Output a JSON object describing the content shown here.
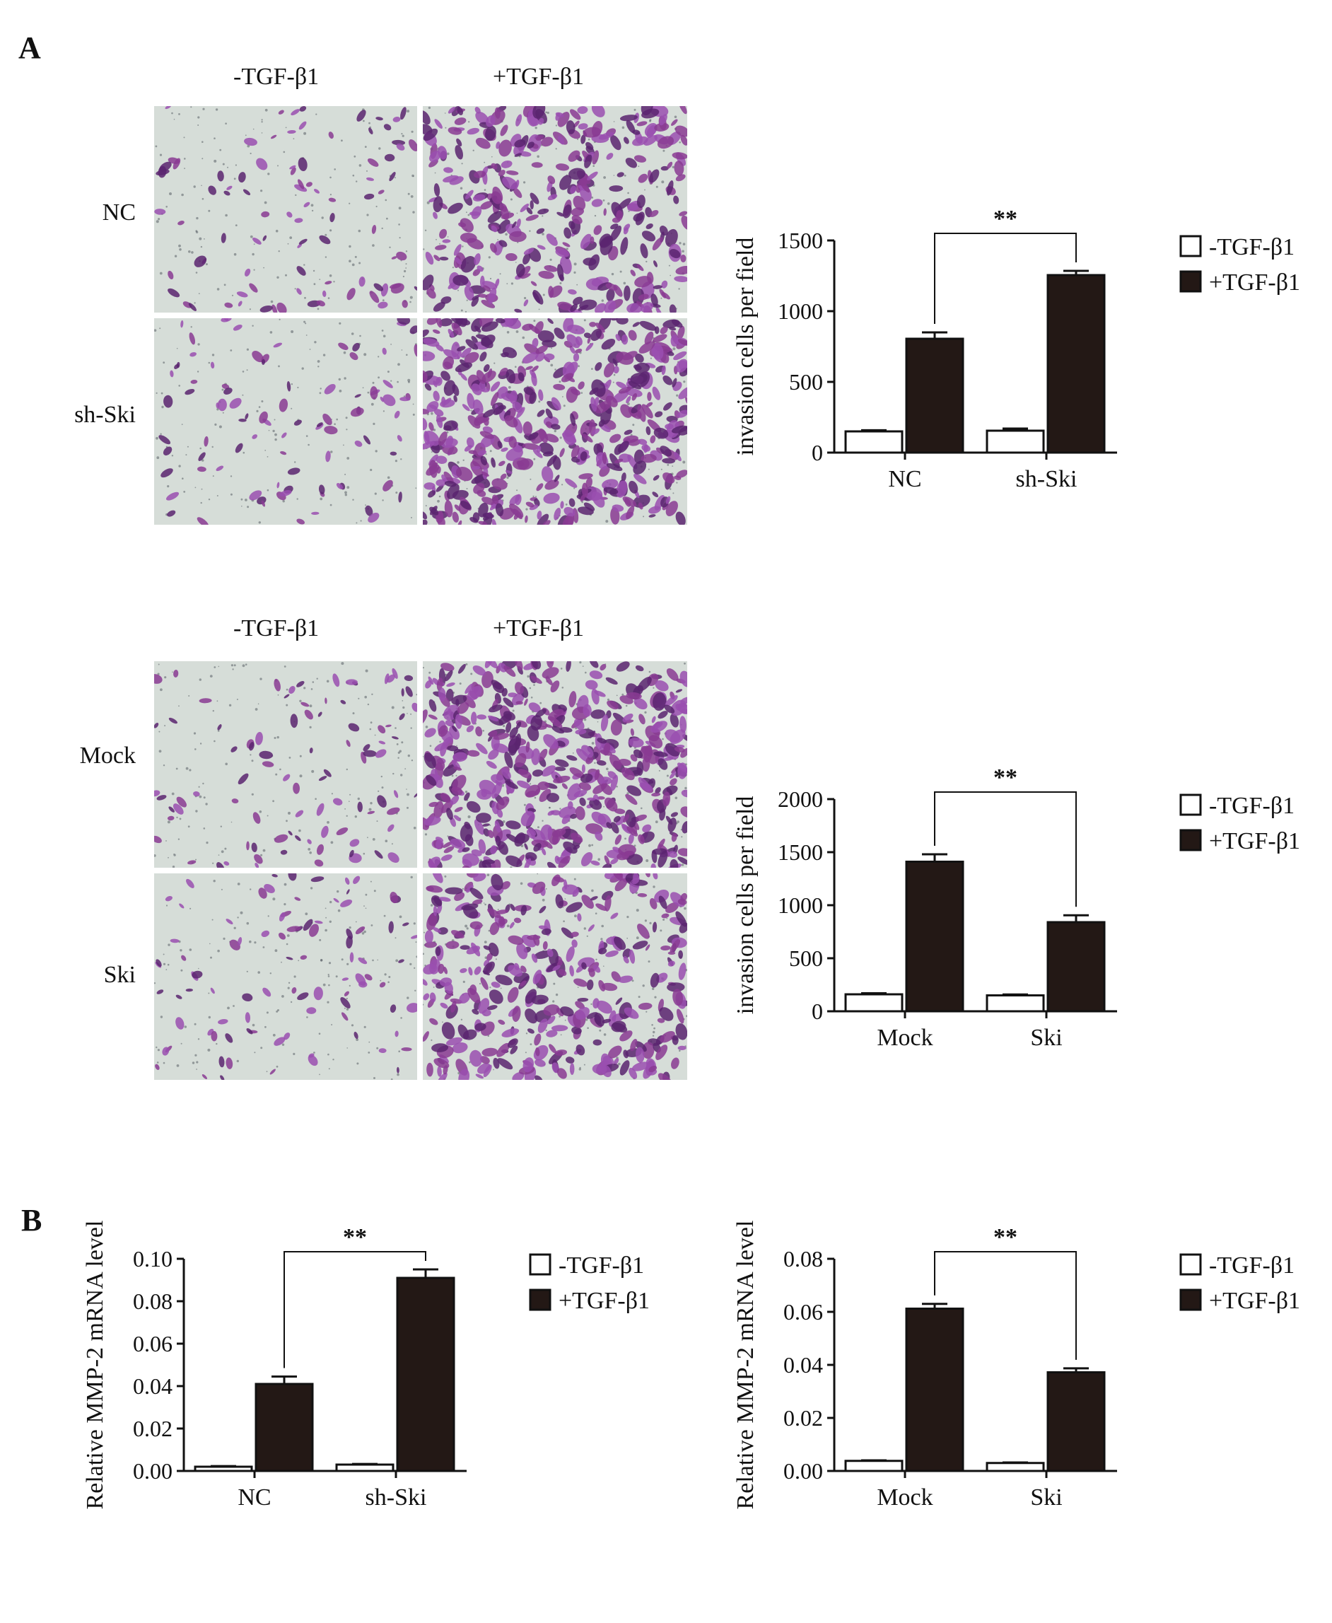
{
  "panel_labels": {
    "a": "A",
    "b": "B"
  },
  "colors": {
    "open_bar": "#ffffff",
    "filled_bar": "#231815",
    "axis": "#111111",
    "photo_bg": "#d6ddd8",
    "stain_dark": "#5b2470",
    "stain_mid": "#8a3b93",
    "stain_light": "#9a4fb0"
  },
  "micrographs": [
    {
      "columns": [
        "-TGF-β1",
        "+TGF-β1"
      ],
      "rows": [
        "NC",
        "sh-Ski"
      ],
      "cells": [
        {
          "name": "nc-minus-tgf-photo",
          "density": "sparse"
        },
        {
          "name": "nc-plus-tgf-photo",
          "density": "dense"
        },
        {
          "name": "shski-minus-tgf-photo",
          "density": "sparse"
        },
        {
          "name": "shski-plus-tgf-photo",
          "density": "very-dense"
        }
      ]
    },
    {
      "columns": [
        "-TGF-β1",
        "+TGF-β1"
      ],
      "rows": [
        "Mock",
        "Ski"
      ],
      "cells": [
        {
          "name": "mock-minus-tgf-photo",
          "density": "sparse"
        },
        {
          "name": "mock-plus-tgf-photo",
          "density": "very-dense"
        },
        {
          "name": "ski-minus-tgf-photo",
          "density": "sparse"
        },
        {
          "name": "ski-plus-tgf-photo",
          "density": "dense"
        }
      ]
    }
  ],
  "chart_data": [
    {
      "id": "chart-a-top",
      "type": "bar",
      "categories": [
        "NC",
        "sh-Ski"
      ],
      "series": [
        {
          "name": "-TGF-β1",
          "values": [
            150,
            155
          ],
          "errors": [
            8,
            15
          ]
        },
        {
          "name": "+TGF-β1",
          "values": [
            805,
            1255
          ],
          "errors": [
            45,
            30
          ]
        }
      ],
      "ylabel": "invasion cells per field",
      "ylim": [
        0,
        1500
      ],
      "yticks": [
        0,
        500,
        1000,
        1500
      ],
      "ytick_labels": [
        "0",
        "500",
        "1000",
        "1500"
      ],
      "significance": "**",
      "legend": "top-right",
      "grid": false
    },
    {
      "id": "chart-a-bottom",
      "type": "bar",
      "categories": [
        "Mock",
        "Ski"
      ],
      "series": [
        {
          "name": "-TGF-β1",
          "values": [
            160,
            150
          ],
          "errors": [
            10,
            8
          ]
        },
        {
          "name": "+TGF-β1",
          "values": [
            1410,
            840
          ],
          "errors": [
            70,
            65
          ]
        }
      ],
      "ylabel": "invasion cells per field",
      "ylim": [
        0,
        2000
      ],
      "yticks": [
        0,
        500,
        1000,
        1500,
        2000
      ],
      "ytick_labels": [
        "0",
        "500",
        "1000",
        "1500",
        "2000"
      ],
      "significance": "**",
      "legend": "top-right",
      "grid": false
    },
    {
      "id": "chart-b-left",
      "type": "bar",
      "categories": [
        "NC",
        "sh-Ski"
      ],
      "series": [
        {
          "name": "-TGF-β1",
          "values": [
            0.002,
            0.003
          ],
          "errors": [
            0.0003,
            0.0003
          ]
        },
        {
          "name": "+TGF-β1",
          "values": [
            0.041,
            0.091
          ],
          "errors": [
            0.0035,
            0.004
          ]
        }
      ],
      "ylabel": "Relative MMP-2 mRNA level",
      "ylim": [
        0,
        0.1
      ],
      "yticks": [
        0,
        0.02,
        0.04,
        0.06,
        0.08,
        0.1
      ],
      "ytick_labels": [
        "0.00",
        "0.02",
        "0.04",
        "0.06",
        "0.08",
        "0.10"
      ],
      "significance": "**",
      "legend": "top-right",
      "grid": false
    },
    {
      "id": "chart-b-right",
      "type": "bar",
      "categories": [
        "Mock",
        "Ski"
      ],
      "series": [
        {
          "name": "-TGF-β1",
          "values": [
            0.0038,
            0.003
          ],
          "errors": [
            0.0002,
            0.0002
          ]
        },
        {
          "name": "+TGF-β1",
          "values": [
            0.0612,
            0.0372
          ],
          "errors": [
            0.0018,
            0.0015
          ]
        }
      ],
      "ylabel": "Relative MMP-2 mRNA level",
      "ylim": [
        0,
        0.08
      ],
      "yticks": [
        0,
        0.02,
        0.04,
        0.06,
        0.08
      ],
      "ytick_labels": [
        "0.00",
        "0.02",
        "0.04",
        "0.06",
        "0.08"
      ],
      "significance": "**",
      "legend": "top-right",
      "grid": false
    }
  ]
}
